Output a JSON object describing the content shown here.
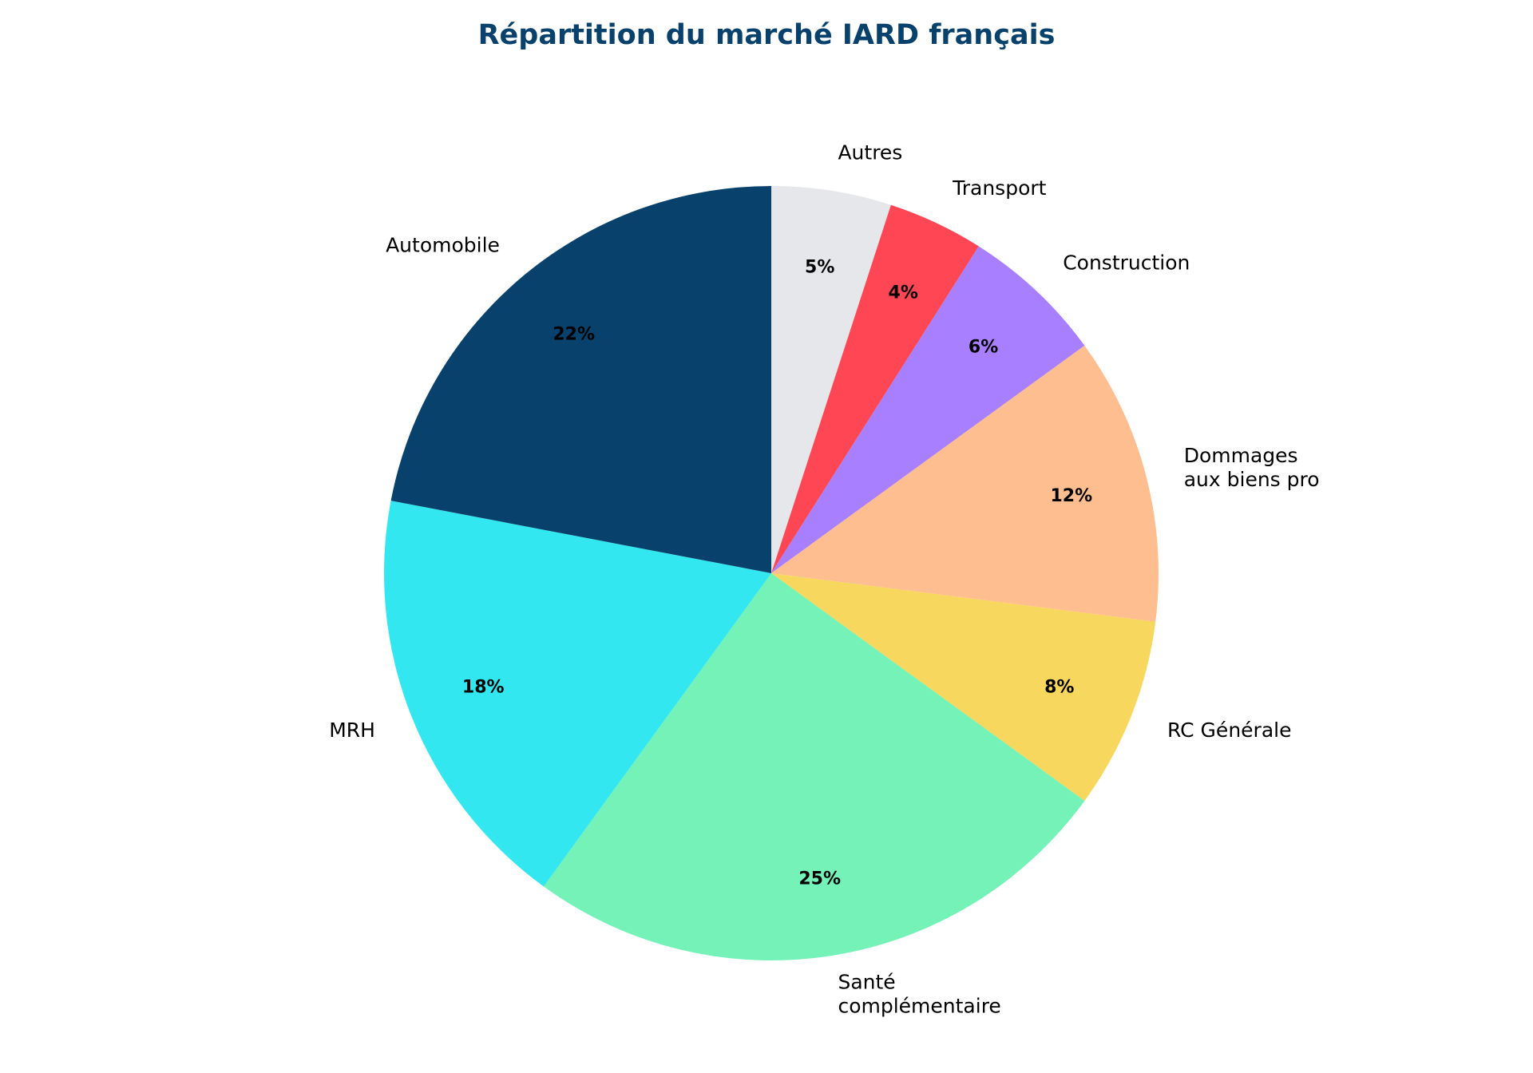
{
  "chart_data": {
    "type": "pie",
    "title": "Répartition du marché IARD français",
    "title_color": "#08416C",
    "start": "top, clockwise",
    "slices": [
      {
        "label": "Autres",
        "value": 5,
        "pct_label": "5%",
        "color": "#E5E7EB"
      },
      {
        "label": "Transport",
        "value": 4,
        "pct_label": "4%",
        "color": "#FF4655"
      },
      {
        "label": "Construction",
        "value": 6,
        "pct_label": "6%",
        "color": "#A87FFF"
      },
      {
        "label": "Dommages\naux biens pro",
        "value": 12,
        "pct_label": "12%",
        "color": "#FFBE8F"
      },
      {
        "label": "RC Générale",
        "value": 8,
        "pct_label": "8%",
        "color": "#F7D75E"
      },
      {
        "label": "Santé\ncomplémentaire",
        "value": 25,
        "pct_label": "25%",
        "color": "#74F2B8"
      },
      {
        "label": "MRH",
        "value": 18,
        "pct_label": "18%",
        "color": "#32E7EF"
      },
      {
        "label": "Automobile",
        "value": 22,
        "pct_label": "22%",
        "color": "#08416C"
      }
    ]
  }
}
